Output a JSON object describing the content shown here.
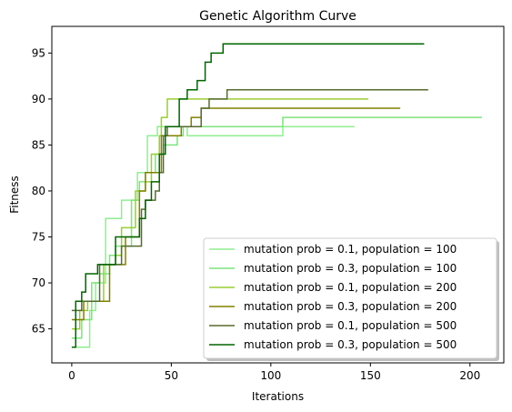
{
  "chart_data": {
    "type": "line",
    "title": "Genetic Algorithm Curve",
    "xlabel": "Iterations",
    "ylabel": "Fitness",
    "xlim": [
      -10,
      217
    ],
    "ylim": [
      61.3,
      97.9
    ],
    "xticks": [
      0,
      50,
      100,
      150,
      200
    ],
    "yticks": [
      65,
      70,
      75,
      80,
      85,
      90,
      95
    ],
    "grid": false,
    "legend_position": "lower right",
    "series": [
      {
        "name": "mutation prob = 0.1, population = 100",
        "color": "#90ee90",
        "points": [
          [
            0,
            63
          ],
          [
            9,
            63
          ],
          [
            9,
            67
          ],
          [
            12,
            67
          ],
          [
            12,
            70
          ],
          [
            17,
            70
          ],
          [
            17,
            77
          ],
          [
            25,
            77
          ],
          [
            25,
            79
          ],
          [
            33,
            79
          ],
          [
            33,
            82
          ],
          [
            38,
            82
          ],
          [
            38,
            86
          ],
          [
            43,
            86
          ],
          [
            43,
            87
          ],
          [
            58,
            87
          ],
          [
            58,
            86
          ],
          [
            106,
            86
          ],
          [
            106,
            87
          ],
          [
            142,
            87
          ]
        ]
      },
      {
        "name": "mutation prob = 0.3, population = 100",
        "color": "#7de37d",
        "points": [
          [
            0,
            64
          ],
          [
            5,
            64
          ],
          [
            5,
            66
          ],
          [
            10,
            66
          ],
          [
            10,
            70
          ],
          [
            14,
            70
          ],
          [
            14,
            71
          ],
          [
            19,
            71
          ],
          [
            19,
            73
          ],
          [
            22,
            73
          ],
          [
            22,
            74
          ],
          [
            30,
            74
          ],
          [
            30,
            79
          ],
          [
            34,
            79
          ],
          [
            34,
            81
          ],
          [
            37,
            81
          ],
          [
            37,
            82
          ],
          [
            42,
            82
          ],
          [
            42,
            84
          ],
          [
            46,
            84
          ],
          [
            46,
            85
          ],
          [
            53,
            85
          ],
          [
            53,
            86
          ],
          [
            56,
            86
          ],
          [
            56,
            87
          ],
          [
            106,
            87
          ],
          [
            106,
            88
          ],
          [
            206,
            88
          ]
        ]
      },
      {
        "name": "mutation prob = 0.1, population = 200",
        "color": "#9acd32",
        "points": [
          [
            0,
            65
          ],
          [
            4,
            65
          ],
          [
            4,
            67
          ],
          [
            8,
            67
          ],
          [
            8,
            68
          ],
          [
            16,
            68
          ],
          [
            16,
            72
          ],
          [
            22,
            72
          ],
          [
            22,
            73
          ],
          [
            25,
            73
          ],
          [
            25,
            76
          ],
          [
            32,
            76
          ],
          [
            32,
            80
          ],
          [
            37,
            80
          ],
          [
            37,
            81
          ],
          [
            40,
            81
          ],
          [
            40,
            84
          ],
          [
            44,
            84
          ],
          [
            44,
            86
          ],
          [
            45,
            86
          ],
          [
            45,
            88
          ],
          [
            48,
            88
          ],
          [
            48,
            90
          ],
          [
            149,
            90
          ]
        ]
      },
      {
        "name": "mutation prob = 0.3, population = 200",
        "color": "#808000",
        "points": [
          [
            0,
            66
          ],
          [
            6,
            66
          ],
          [
            6,
            68
          ],
          [
            19,
            68
          ],
          [
            19,
            72
          ],
          [
            27,
            72
          ],
          [
            27,
            75
          ],
          [
            34,
            75
          ],
          [
            34,
            80
          ],
          [
            37,
            80
          ],
          [
            37,
            82
          ],
          [
            45,
            82
          ],
          [
            45,
            86
          ],
          [
            55,
            86
          ],
          [
            55,
            87
          ],
          [
            60,
            87
          ],
          [
            60,
            88
          ],
          [
            65,
            88
          ],
          [
            65,
            89
          ],
          [
            165,
            89
          ]
        ]
      },
      {
        "name": "mutation prob = 0.1, population = 500",
        "color": "#556b2f",
        "points": [
          [
            0,
            67
          ],
          [
            5,
            67
          ],
          [
            5,
            68
          ],
          [
            14,
            68
          ],
          [
            14,
            72
          ],
          [
            25,
            72
          ],
          [
            25,
            74
          ],
          [
            35,
            74
          ],
          [
            35,
            78
          ],
          [
            37,
            78
          ],
          [
            37,
            79
          ],
          [
            42,
            79
          ],
          [
            42,
            80
          ],
          [
            44,
            80
          ],
          [
            44,
            82
          ],
          [
            46,
            82
          ],
          [
            46,
            86
          ],
          [
            48,
            86
          ],
          [
            48,
            87
          ],
          [
            65,
            87
          ],
          [
            65,
            89
          ],
          [
            69,
            89
          ],
          [
            69,
            90
          ],
          [
            78,
            90
          ],
          [
            78,
            91
          ],
          [
            179,
            91
          ]
        ]
      },
      {
        "name": "mutation prob = 0.3, population = 500",
        "color": "#006400",
        "points": [
          [
            0,
            63
          ],
          [
            2,
            63
          ],
          [
            2,
            68
          ],
          [
            5,
            68
          ],
          [
            5,
            69
          ],
          [
            7,
            69
          ],
          [
            7,
            71
          ],
          [
            13,
            71
          ],
          [
            13,
            72
          ],
          [
            22,
            72
          ],
          [
            22,
            75
          ],
          [
            34,
            75
          ],
          [
            34,
            77
          ],
          [
            37,
            77
          ],
          [
            37,
            79
          ],
          [
            40,
            79
          ],
          [
            40,
            81
          ],
          [
            44,
            81
          ],
          [
            44,
            84
          ],
          [
            47,
            84
          ],
          [
            47,
            87
          ],
          [
            54,
            87
          ],
          [
            54,
            90
          ],
          [
            58,
            90
          ],
          [
            58,
            91
          ],
          [
            63,
            91
          ],
          [
            63,
            92
          ],
          [
            67,
            92
          ],
          [
            67,
            94
          ],
          [
            70,
            94
          ],
          [
            70,
            95
          ],
          [
            76,
            95
          ],
          [
            76,
            96
          ],
          [
            177,
            96
          ]
        ]
      }
    ]
  }
}
